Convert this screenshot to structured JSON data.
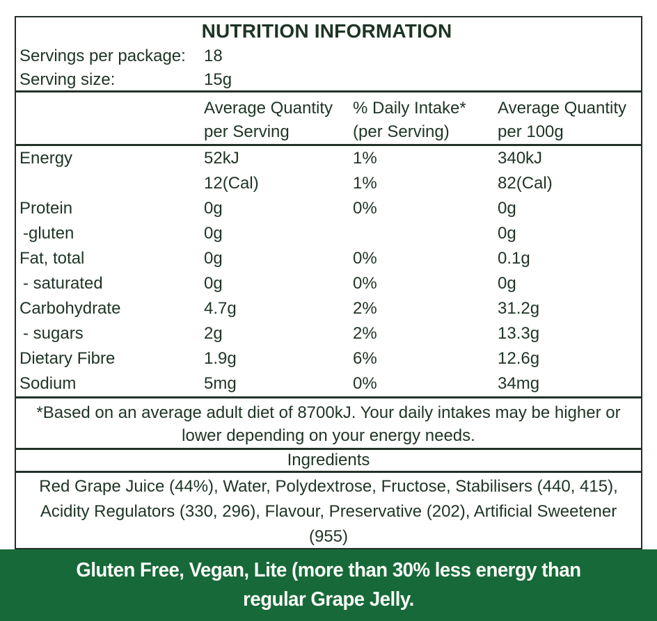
{
  "label": {
    "title": "NUTRITION INFORMATION",
    "servings_per_package": {
      "label": "Servings per package:",
      "value": "18"
    },
    "serving_size": {
      "label": "Serving size:",
      "value": "15g"
    },
    "column_headers": {
      "per_serving": {
        "line1": "Average Quantity",
        "line2": "per Serving"
      },
      "daily_intake": {
        "line1": "% Daily Intake*",
        "line2": "(per Serving)"
      },
      "per_100g": {
        "line1": "Average Quantity",
        "line2": "per 100g"
      }
    },
    "rows": [
      {
        "nutrient": "Energy",
        "per_serving": "52kJ",
        "daily_intake": "1%",
        "per_100g": "340kJ"
      },
      {
        "nutrient": "",
        "per_serving": "12(Cal)",
        "daily_intake": "1%",
        "per_100g": "82(Cal)"
      },
      {
        "nutrient": "Protein",
        "per_serving": "0g",
        "daily_intake": "0%",
        "per_100g": "0g"
      },
      {
        "nutrient": "-gluten",
        "per_serving": "0g",
        "daily_intake": "",
        "per_100g": "0g"
      },
      {
        "nutrient": "Fat, total",
        "per_serving": "0g",
        "daily_intake": "0%",
        "per_100g": "0.1g"
      },
      {
        "nutrient": "- saturated",
        "per_serving": "0g",
        "daily_intake": "0%",
        "per_100g": "0g"
      },
      {
        "nutrient": "Carbohydrate",
        "per_serving": "4.7g",
        "daily_intake": "2%",
        "per_100g": "31.2g"
      },
      {
        "nutrient": "- sugars",
        "per_serving": "2g",
        "daily_intake": "2%",
        "per_100g": "13.3g"
      },
      {
        "nutrient": "Dietary Fibre",
        "per_serving": "1.9g",
        "daily_intake": "6%",
        "per_100g": "12.6g"
      },
      {
        "nutrient": "Sodium",
        "per_serving": "5mg",
        "daily_intake": "0%",
        "per_100g": "34mg"
      }
    ],
    "footnote": {
      "line1": "*Based on an average adult diet of 8700kJ. Your daily intakes may be higher or",
      "line2": "lower depending on your energy needs."
    },
    "ingredients": {
      "header": "Ingredients",
      "line1": "Red Grape Juice (44%), Water, Polydextrose, Fructose, Stabilisers (440, 415),",
      "line2": "Acidity Regulators (330, 296), Flavour, Preservative (202), Artificial Sweetener",
      "line3": "(955)"
    }
  },
  "banner": {
    "line1": "Gluten Free, Vegan, Lite (more than 30% less energy than",
    "line2": "regular Grape Jelly.",
    "background_color": "#17693A",
    "text_color": "#FDFDF8"
  },
  "colors": {
    "text": "#1E3425",
    "border": "#233028",
    "background": "#FFFFFF"
  }
}
